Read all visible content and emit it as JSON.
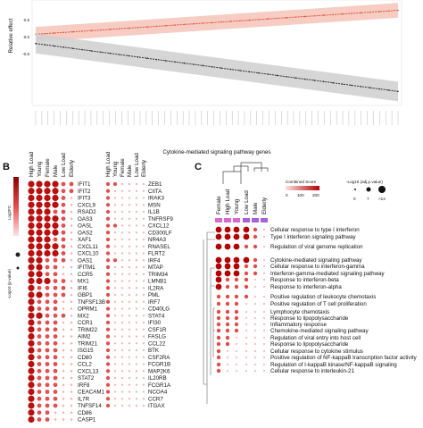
{
  "panels": {
    "a": {
      "ylabel": "Relative effect",
      "xlabel": "Cytokine-mediated signaling pathway genes",
      "yticks": [
        "0.5",
        "0.0",
        "-0.5"
      ],
      "chart_data": {
        "type": "line",
        "ylim": [
          -0.9,
          0.7
        ],
        "series": [
          {
            "color": "#e05545",
            "band": "#f6c3b8",
            "values": [
              0.2,
              0.21,
              0.22,
              0.23,
              0.24,
              0.25,
              0.26,
              0.27,
              0.28,
              0.29,
              0.3,
              0.31,
              0.32,
              0.33,
              0.34,
              0.35,
              0.36,
              0.37,
              0.38,
              0.39,
              0.4,
              0.41,
              0.42,
              0.43,
              0.44,
              0.45,
              0.46,
              0.47,
              0.48,
              0.49,
              0.5,
              0.51,
              0.52,
              0.53,
              0.54,
              0.55,
              0.56,
              0.57,
              0.58,
              0.59
            ]
          },
          {
            "color": "#333333",
            "band": "#cfcfcf",
            "values": [
              0.05,
              0.03,
              0.01,
              -0.01,
              -0.03,
              -0.05,
              -0.07,
              -0.09,
              -0.11,
              -0.13,
              -0.15,
              -0.17,
              -0.19,
              -0.21,
              -0.23,
              -0.25,
              -0.27,
              -0.29,
              -0.31,
              -0.33,
              -0.35,
              -0.37,
              -0.39,
              -0.41,
              -0.43,
              -0.45,
              -0.47,
              -0.49,
              -0.51,
              -0.53,
              -0.55,
              -0.57,
              -0.59,
              -0.61,
              -0.63,
              -0.65,
              -0.67,
              -0.69,
              -0.71,
              -0.73
            ]
          }
        ]
      }
    },
    "b": {
      "letter": "B",
      "columns": [
        "High Load",
        "Young",
        "Female",
        "Male",
        "Low Load",
        "Elderly"
      ],
      "legend_fc_title": "Log2FC",
      "legend_p_title": "-Log10 (p value)",
      "genes_left": [
        "IFIT1",
        "IFIT2",
        "IFIT3",
        "CXCL9",
        "RSAD2",
        "OAS3",
        "OASL",
        "OAS2",
        "XAF1",
        "CXCL11",
        "CXCL10",
        "OAS1",
        "IFITM1",
        "CCR5",
        "MX1",
        "IFI6",
        "GBP1",
        "TNFSF13B",
        "OPRM1",
        "MX2",
        "CCR1",
        "TRIM22",
        "AIM2",
        "TRIM21",
        "ISG15",
        "CD80",
        "CCL2",
        "CXCL13",
        "STAT2",
        "IRF8",
        "CEACAM1",
        "IL7R",
        "TNFSF14",
        "CD86",
        "CASP1"
      ],
      "genes_right": [
        "ZEB1",
        "CIITA",
        "IRAK3",
        "MSN",
        "IL1B",
        "TNFRSF9",
        "CXCL12",
        "CD300LF",
        "NR4A3",
        "RNASEL",
        "FLRT2",
        "IRF4",
        "MTAP",
        "TRIM34",
        "LMNB1",
        "IL2RA",
        "PML",
        "IRF7",
        "CD40LG",
        "STAT4",
        "IFI30",
        "CSF1R",
        "FASLG",
        "CCL22",
        "BTK",
        "CSF2RA",
        "FCGR1B",
        "MAP2K6",
        "IL20RB",
        "FCGR1A",
        "NCOA4",
        "CCR7",
        "ITGAX"
      ],
      "matrix_left": [
        [
          3,
          3,
          3,
          3,
          2,
          2
        ],
        [
          3,
          3,
          3,
          3,
          2,
          2
        ],
        [
          3,
          3,
          3,
          3,
          2,
          1
        ],
        [
          3,
          3,
          3,
          3,
          2,
          1
        ],
        [
          3,
          3,
          3,
          2,
          2,
          1
        ],
        [
          3,
          3,
          3,
          3,
          2,
          1
        ],
        [
          3,
          3,
          3,
          3,
          2,
          1
        ],
        [
          3,
          3,
          3,
          3,
          2,
          1
        ],
        [
          3,
          3,
          3,
          2,
          2,
          1
        ],
        [
          3,
          3,
          3,
          3,
          2,
          1
        ],
        [
          3,
          3,
          3,
          3,
          2,
          1
        ],
        [
          3,
          3,
          2,
          2,
          2,
          1
        ],
        [
          3,
          3,
          2,
          2,
          1,
          1
        ],
        [
          3,
          3,
          2,
          2,
          1,
          1
        ],
        [
          3,
          3,
          3,
          2,
          2,
          1
        ],
        [
          3,
          2,
          2,
          2,
          2,
          1
        ],
        [
          3,
          3,
          2,
          2,
          2,
          1
        ],
        [
          3,
          2,
          2,
          2,
          1,
          1
        ],
        [
          3,
          2,
          2,
          2,
          1,
          1
        ],
        [
          3,
          3,
          2,
          2,
          2,
          1
        ],
        [
          3,
          2,
          2,
          2,
          1,
          1
        ],
        [
          3,
          2,
          2,
          2,
          1,
          1
        ],
        [
          3,
          2,
          2,
          2,
          1,
          1
        ],
        [
          3,
          2,
          2,
          2,
          1,
          1
        ],
        [
          3,
          2,
          2,
          2,
          1,
          1
        ],
        [
          3,
          2,
          2,
          2,
          1,
          1
        ],
        [
          3,
          2,
          2,
          2,
          1,
          1
        ],
        [
          3,
          2,
          2,
          2,
          1,
          1
        ],
        [
          3,
          2,
          2,
          2,
          1,
          1
        ],
        [
          3,
          2,
          2,
          2,
          1,
          1
        ],
        [
          3,
          2,
          2,
          2,
          1,
          1
        ],
        [
          3,
          2,
          2,
          2,
          1,
          1
        ],
        [
          3,
          2,
          2,
          2,
          1,
          1
        ],
        [
          3,
          2,
          2,
          1,
          1,
          1
        ],
        [
          3,
          2,
          2,
          1,
          1,
          1
        ]
      ],
      "matrix_right": [
        [
          2,
          2,
          1,
          1,
          1,
          1
        ],
        [
          2,
          1,
          1,
          1,
          1,
          1
        ],
        [
          2,
          1,
          1,
          1,
          1,
          1
        ],
        [
          2,
          1,
          1,
          1,
          1,
          1
        ],
        [
          2,
          1,
          1,
          1,
          1,
          1
        ],
        [
          2,
          1,
          1,
          1,
          1,
          1
        ],
        [
          2,
          2,
          1,
          1,
          1,
          1
        ],
        [
          2,
          1,
          1,
          1,
          1,
          1
        ],
        [
          2,
          1,
          1,
          1,
          1,
          1
        ],
        [
          2,
          1,
          1,
          1,
          1,
          1
        ],
        [
          2,
          1,
          1,
          1,
          1,
          1
        ],
        [
          2,
          2,
          1,
          1,
          1,
          1
        ],
        [
          2,
          1,
          1,
          1,
          1,
          1
        ],
        [
          2,
          1,
          1,
          1,
          1,
          1
        ],
        [
          2,
          1,
          1,
          1,
          1,
          1
        ],
        [
          2,
          1,
          1,
          1,
          1,
          1
        ],
        [
          2,
          1,
          1,
          1,
          1,
          1
        ],
        [
          2,
          1,
          1,
          1,
          1,
          1
        ],
        [
          2,
          1,
          1,
          1,
          1,
          1
        ],
        [
          2,
          1,
          1,
          1,
          1,
          1
        ],
        [
          2,
          1,
          1,
          1,
          1,
          1
        ],
        [
          2,
          1,
          1,
          1,
          1,
          1
        ],
        [
          2,
          1,
          1,
          1,
          1,
          1
        ],
        [
          2,
          1,
          1,
          1,
          1,
          1
        ],
        [
          2,
          1,
          1,
          1,
          1,
          1
        ],
        [
          2,
          1,
          1,
          1,
          1,
          1
        ],
        [
          2,
          1,
          1,
          1,
          1,
          1
        ],
        [
          2,
          1,
          1,
          1,
          1,
          1
        ],
        [
          2,
          1,
          1,
          1,
          1,
          1
        ],
        [
          2,
          1,
          1,
          1,
          1,
          1
        ],
        [
          2,
          1,
          1,
          1,
          1,
          1
        ],
        [
          2,
          1,
          1,
          1,
          1,
          1
        ],
        [
          2,
          1,
          1,
          1,
          1,
          1
        ]
      ]
    },
    "c": {
      "letter": "C",
      "columns": [
        "Female",
        "High Load",
        "Young",
        "Low Load",
        "Male",
        "Elderly"
      ],
      "column_colors": [
        "#d968d0",
        "#d968d0",
        "#d968d0",
        "#a860d8",
        "#a860d8",
        "#a860d8"
      ],
      "combined_score_title": "Combined Score",
      "combined_score_ticks": [
        "0",
        "100",
        "200"
      ],
      "size_legend_title": "-Log10 (adj.p value)",
      "size_legend_ticks": [
        "0",
        "7",
        ">14"
      ],
      "pathways": [
        "Cellular response to type I interferon",
        "Type I interferon signaling pathway",
        "Regulation of viral genome replication",
        "Cytokine-mediated signaling pathway",
        "Cellular response to interferon-gamma",
        "Interferon-gamma-mediated signaling pathway",
        "Response to interferon-beta",
        "Response to interferon-alpha",
        "Positive regulation of leukocyte chemotaxis",
        "Positive regulation of T cell proliferation",
        "Lymphocyte chemotaxis",
        "Response to lipopolysaccharide",
        "Inflammatory response",
        "Chemokine-mediated signaling pathway",
        "Regulation of viral entry into host cell",
        "Response to lipopolysaccharide",
        "Cellular response to cytokine stimulus",
        "Positive regulation of NF-kappaB transcription factor activity",
        "Regulation of I-kappaB kinase/NF-kappaB signaling",
        "Cellular response to interleukin-21"
      ],
      "matrix": [
        [
          3,
          3,
          3,
          3,
          2,
          1
        ],
        [
          3,
          3,
          3,
          3,
          2,
          1
        ],
        [
          3,
          3,
          3,
          2,
          2,
          1
        ],
        [
          3,
          3,
          3,
          3,
          2,
          1
        ],
        [
          3,
          3,
          3,
          2,
          2,
          1
        ],
        [
          3,
          3,
          3,
          2,
          2,
          1
        ],
        [
          3,
          2,
          2,
          2,
          1,
          1
        ],
        [
          3,
          2,
          2,
          2,
          1,
          1
        ],
        [
          2,
          2,
          2,
          2,
          1,
          1
        ],
        [
          2,
          2,
          2,
          1,
          1,
          1
        ],
        [
          2,
          2,
          2,
          1,
          1,
          1
        ],
        [
          2,
          2,
          2,
          1,
          1,
          1
        ],
        [
          2,
          2,
          2,
          1,
          1,
          1
        ],
        [
          2,
          2,
          2,
          1,
          1,
          1
        ],
        [
          2,
          2,
          1,
          1,
          1,
          1
        ],
        [
          2,
          2,
          1,
          1,
          1,
          1
        ],
        [
          2,
          1,
          1,
          1,
          1,
          1
        ],
        [
          2,
          1,
          1,
          1,
          1,
          1
        ],
        [
          2,
          1,
          1,
          1,
          1,
          1
        ],
        [
          2,
          1,
          1,
          1,
          1,
          1
        ]
      ]
    }
  }
}
